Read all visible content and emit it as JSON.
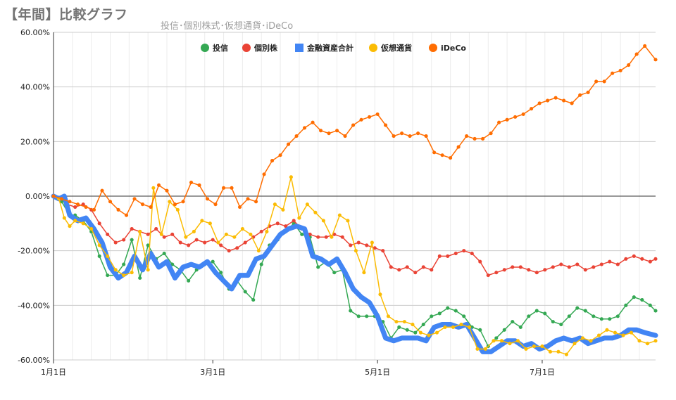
{
  "chart_data": {
    "type": "line",
    "title": "【年間】比較グラフ",
    "subtitle": "投信･個別株式･仮想通貨･iDeCo",
    "xlabel": "",
    "ylabel": "",
    "ylim": [
      -60,
      60
    ],
    "yticks": [
      60,
      40,
      20,
      0,
      -20,
      -40,
      -60
    ],
    "ytick_labels": [
      "60.00%",
      "40.00%",
      "20.00%",
      "0.00%",
      "-20.00%",
      "-40.00%",
      "-60.00%"
    ],
    "xlim_day": [
      1,
      224
    ],
    "xticks": [
      {
        "label": "1月1日",
        "day": 1
      },
      {
        "label": "3月1日",
        "day": 60
      },
      {
        "label": "5月1日",
        "day": 121
      },
      {
        "label": "7月1日",
        "day": 182
      }
    ],
    "grid": true,
    "legend_position": "top",
    "series": [
      {
        "name": "投信",
        "color": "#34a853",
        "width": 1.5,
        "marker": 3,
        "days": [
          1,
          4,
          7,
          9,
          12,
          15,
          18,
          21,
          24,
          27,
          30,
          33,
          36,
          39,
          42,
          45,
          48,
          51,
          54,
          57,
          60,
          63,
          66,
          69,
          72,
          75,
          78,
          81,
          84,
          87,
          90,
          93,
          96,
          99,
          102,
          105,
          108,
          111,
          114,
          117,
          120,
          123,
          126,
          129,
          132,
          135,
          138,
          141,
          144,
          147,
          150,
          153,
          156,
          159,
          162,
          165,
          168,
          171,
          174,
          177,
          180,
          183,
          186,
          189,
          192,
          195,
          198,
          201,
          204,
          207,
          210,
          213,
          216,
          219,
          222,
          224
        ],
        "values": [
          0,
          -2,
          -7,
          -7,
          -9,
          -13,
          -22,
          -29,
          -29,
          -25,
          -16,
          -30,
          -18,
          -23,
          -21,
          -25,
          -27,
          -31,
          -27,
          -25,
          -24,
          -28,
          -34,
          -31,
          -35,
          -38,
          -25,
          -18,
          -16,
          -13,
          -10,
          -14,
          -15,
          -26,
          -24,
          -28,
          -27,
          -42,
          -44,
          -44,
          -44,
          -46,
          -52,
          -48,
          -49,
          -50,
          -47,
          -44,
          -43,
          -41,
          -42,
          -44,
          -48,
          -49,
          -55,
          -52,
          -49,
          -46,
          -48,
          -44,
          -42,
          -43,
          -46,
          -47,
          -44,
          -41,
          -42,
          -44,
          -45,
          -45,
          -44,
          -40,
          -37,
          -38,
          -40,
          -42
        ]
      },
      {
        "name": "個別株",
        "color": "#ea4335",
        "width": 1.5,
        "marker": 3,
        "days": [
          1,
          4,
          6,
          9,
          12,
          15,
          18,
          21,
          24,
          27,
          30,
          33,
          36,
          39,
          42,
          45,
          48,
          51,
          54,
          57,
          60,
          63,
          66,
          69,
          72,
          75,
          78,
          81,
          84,
          87,
          90,
          93,
          96,
          99,
          102,
          105,
          108,
          111,
          114,
          117,
          120,
          123,
          126,
          129,
          132,
          135,
          138,
          141,
          144,
          147,
          150,
          153,
          156,
          159,
          162,
          165,
          168,
          171,
          174,
          177,
          180,
          183,
          186,
          189,
          192,
          195,
          198,
          201,
          204,
          207,
          210,
          213,
          216,
          219,
          222,
          224
        ],
        "values": [
          0,
          -1,
          -3,
          -4,
          -3,
          -5,
          -10,
          -14,
          -17,
          -16,
          -12,
          -13,
          -14,
          -12,
          -15,
          -14,
          -17,
          -18,
          -16,
          -17,
          -16,
          -18,
          -20,
          -19,
          -17,
          -15,
          -13,
          -11,
          -10,
          -11,
          -9,
          -12,
          -14,
          -15,
          -15,
          -14,
          -15,
          -18,
          -17,
          -18,
          -19,
          -20,
          -26,
          -27,
          -26,
          -28,
          -26,
          -27,
          -22,
          -22,
          -21,
          -20,
          -21,
          -24,
          -29,
          -28,
          -27,
          -26,
          -26,
          -27,
          -28,
          -27,
          -26,
          -25,
          -26,
          -25,
          -27,
          -26,
          -25,
          -24,
          -25,
          -23,
          -22,
          -23,
          -24,
          -23
        ]
      },
      {
        "name": "金融資産合計",
        "color": "#4285f4",
        "width": 7,
        "marker": 0,
        "days": [
          1,
          3,
          5,
          7,
          10,
          13,
          16,
          19,
          22,
          25,
          28,
          31,
          34,
          37,
          40,
          43,
          46,
          49,
          52,
          55,
          58,
          61,
          64,
          67,
          70,
          73,
          76,
          79,
          82,
          85,
          88,
          91,
          94,
          97,
          100,
          103,
          106,
          109,
          112,
          115,
          118,
          121,
          124,
          127,
          130,
          133,
          136,
          139,
          142,
          145,
          148,
          151,
          154,
          157,
          160,
          163,
          166,
          169,
          172,
          175,
          178,
          181,
          184,
          187,
          190,
          193,
          196,
          199,
          202,
          205,
          208,
          211,
          214,
          217,
          220,
          224
        ],
        "values": [
          0,
          -1,
          0,
          -7,
          -9,
          -8,
          -12,
          -17,
          -26,
          -30,
          -28,
          -22,
          -27,
          -21,
          -26,
          -24,
          -30,
          -26,
          -25,
          -26,
          -24,
          -28,
          -31,
          -34,
          -29,
          -29,
          -23,
          -22,
          -18,
          -14,
          -12,
          -11,
          -12,
          -22,
          -23,
          -25,
          -23,
          -28,
          -34,
          -37,
          -39,
          -44,
          -52,
          -53,
          -52,
          -52,
          -52,
          -53,
          -48,
          -47,
          -47,
          -48,
          -47,
          -52,
          -57,
          -57,
          -55,
          -53,
          -53,
          -55,
          -54,
          -56,
          -55,
          -53,
          -52,
          -53,
          -52,
          -54,
          -53,
          -52,
          -52,
          -51,
          -49,
          -49,
          -50,
          -51
        ]
      },
      {
        "name": "仮想通貨",
        "color": "#fbbc04",
        "width": 1.5,
        "marker": 3,
        "days": [
          1,
          3,
          5,
          7,
          9,
          12,
          15,
          18,
          21,
          24,
          27,
          30,
          33,
          36,
          38,
          41,
          44,
          47,
          50,
          53,
          56,
          59,
          62,
          65,
          68,
          71,
          74,
          77,
          80,
          83,
          86,
          89,
          92,
          95,
          98,
          101,
          104,
          107,
          110,
          113,
          116,
          119,
          122,
          125,
          128,
          131,
          134,
          137,
          140,
          143,
          146,
          149,
          152,
          155,
          158,
          161,
          164,
          167,
          170,
          173,
          176,
          179,
          182,
          185,
          188,
          191,
          194,
          197,
          200,
          203,
          206,
          209,
          212,
          215,
          218,
          221,
          224
        ],
        "values": [
          0,
          -1,
          -8,
          -11,
          -9,
          -10,
          -12,
          -18,
          -22,
          -27,
          -29,
          -28,
          -13,
          -27,
          3,
          -14,
          -2,
          -5,
          -15,
          -13,
          -9,
          -10,
          -17,
          -14,
          -15,
          -12,
          -14,
          -20,
          -13,
          -3,
          -5,
          7,
          -8,
          -3,
          -6,
          -9,
          -15,
          -7,
          -9,
          -20,
          -28,
          -17,
          -36,
          -44,
          -46,
          -46,
          -47,
          -50,
          -51,
          -50,
          -48,
          -48,
          -47,
          -48,
          -56,
          -56,
          -53,
          -53,
          -54,
          -53,
          -56,
          -55,
          -55,
          -57,
          -57,
          -58,
          -54,
          -52,
          -53,
          -51,
          -49,
          -50,
          -51,
          -50,
          -53,
          -54,
          -53
        ]
      },
      {
        "name": "iDeCo",
        "color": "#ff6d01",
        "width": 1.5,
        "marker": 3,
        "days": [
          1,
          4,
          7,
          10,
          13,
          16,
          19,
          22,
          25,
          28,
          31,
          34,
          37,
          40,
          43,
          46,
          49,
          52,
          55,
          58,
          61,
          64,
          67,
          70,
          73,
          76,
          79,
          82,
          85,
          88,
          91,
          94,
          97,
          100,
          103,
          106,
          109,
          112,
          115,
          118,
          121,
          124,
          127,
          130,
          133,
          136,
          139,
          142,
          145,
          148,
          151,
          154,
          157,
          160,
          163,
          166,
          169,
          172,
          175,
          178,
          181,
          184,
          187,
          190,
          193,
          196,
          199,
          202,
          205,
          208,
          211,
          214,
          217,
          220,
          224
        ],
        "values": [
          0,
          -1,
          -2,
          -3,
          -4,
          -5,
          2,
          -2,
          -5,
          -7,
          -1,
          -3,
          -4,
          4,
          2,
          -3,
          -2,
          5,
          4,
          -1,
          -3,
          3,
          3,
          -4,
          -1,
          -2,
          8,
          13,
          15,
          19,
          22,
          25,
          27,
          24,
          23,
          24,
          22,
          26,
          28,
          29,
          30,
          26,
          22,
          23,
          22,
          23,
          22,
          16,
          15,
          14,
          18,
          22,
          21,
          21,
          23,
          27,
          28,
          29,
          30,
          32,
          34,
          35,
          36,
          35,
          34,
          37,
          38,
          42,
          42,
          45,
          46,
          48,
          52,
          55,
          50
        ]
      }
    ]
  }
}
